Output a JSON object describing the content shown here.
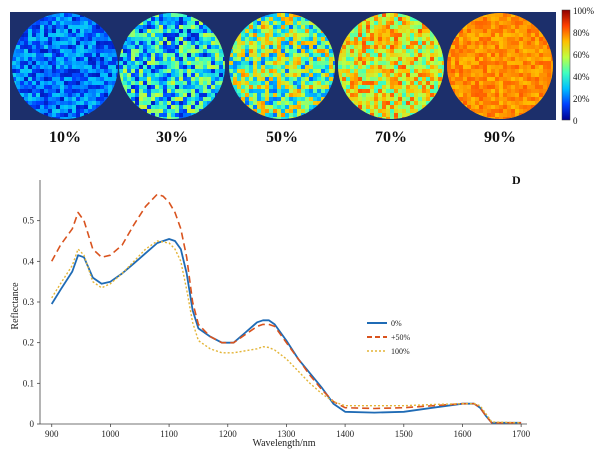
{
  "colorbar": {
    "ticks": [
      "100%",
      "80%",
      "60%",
      "40%",
      "20%",
      "0"
    ],
    "colors": [
      "#00008f",
      "#0040ff",
      "#00bfff",
      "#40ffbf",
      "#bfff40",
      "#ffbf00",
      "#ff4000",
      "#8f0000"
    ]
  },
  "panels": [
    {
      "label": "10%",
      "level": 0.1
    },
    {
      "label": "30%",
      "level": 0.3
    },
    {
      "label": "50%",
      "level": 0.5
    },
    {
      "label": "70%",
      "level": 0.7
    },
    {
      "label": "90%",
      "level": 0.9
    }
  ],
  "panel_letter": "D",
  "chart_data": {
    "type": "line",
    "title": "",
    "xlabel": "Wavelength/nm",
    "ylabel": "Reflectance",
    "xlim": [
      880,
      1710
    ],
    "ylim": [
      0,
      0.6
    ],
    "xticks": [
      900,
      1000,
      1100,
      1200,
      1300,
      1400,
      1500,
      1600,
      1700
    ],
    "yticks": [
      0,
      0.1,
      0.2,
      0.3,
      0.4,
      0.5
    ],
    "legend": "center-right",
    "series": [
      {
        "name": "0%",
        "color": "#1f6bb5",
        "dash": "solid",
        "x": [
          900,
          915,
          935,
          945,
          955,
          970,
          985,
          1000,
          1020,
          1040,
          1060,
          1080,
          1100,
          1110,
          1120,
          1130,
          1140,
          1150,
          1170,
          1190,
          1210,
          1230,
          1250,
          1260,
          1270,
          1280,
          1300,
          1320,
          1340,
          1360,
          1380,
          1400,
          1450,
          1500,
          1550,
          1600,
          1620,
          1630,
          1640,
          1650,
          1700
        ],
        "y": [
          0.295,
          0.33,
          0.375,
          0.415,
          0.41,
          0.36,
          0.345,
          0.35,
          0.37,
          0.395,
          0.42,
          0.445,
          0.455,
          0.45,
          0.43,
          0.37,
          0.28,
          0.235,
          0.215,
          0.2,
          0.2,
          0.225,
          0.25,
          0.255,
          0.255,
          0.245,
          0.205,
          0.16,
          0.125,
          0.09,
          0.05,
          0.03,
          0.028,
          0.03,
          0.04,
          0.05,
          0.05,
          0.04,
          0.02,
          0.003,
          0.003
        ]
      },
      {
        "name": "50%",
        "color": "#d9531e",
        "dash": "7,4",
        "x": [
          900,
          915,
          935,
          945,
          955,
          970,
          985,
          1000,
          1020,
          1040,
          1060,
          1080,
          1090,
          1100,
          1110,
          1120,
          1130,
          1140,
          1150,
          1170,
          1190,
          1210,
          1230,
          1250,
          1260,
          1270,
          1280,
          1300,
          1320,
          1340,
          1360,
          1380,
          1400,
          1450,
          1500,
          1550,
          1600,
          1620,
          1630,
          1640,
          1650,
          1700
        ],
        "y": [
          0.4,
          0.44,
          0.48,
          0.52,
          0.5,
          0.43,
          0.41,
          0.415,
          0.44,
          0.49,
          0.535,
          0.565,
          0.56,
          0.545,
          0.52,
          0.48,
          0.41,
          0.3,
          0.245,
          0.215,
          0.2,
          0.2,
          0.22,
          0.24,
          0.245,
          0.245,
          0.24,
          0.2,
          0.16,
          0.12,
          0.085,
          0.055,
          0.04,
          0.038,
          0.04,
          0.045,
          0.05,
          0.05,
          0.04,
          0.02,
          0.003,
          0.003
        ]
      },
      {
        "name": "100%",
        "color": "#e3b436",
        "dash": "2,2",
        "x": [
          900,
          915,
          935,
          945,
          955,
          970,
          985,
          1000,
          1020,
          1040,
          1060,
          1080,
          1100,
          1110,
          1120,
          1130,
          1140,
          1150,
          1170,
          1190,
          1210,
          1230,
          1250,
          1260,
          1270,
          1280,
          1300,
          1320,
          1340,
          1360,
          1380,
          1400,
          1450,
          1500,
          1550,
          1600,
          1620,
          1630,
          1640,
          1650,
          1700
        ],
        "y": [
          0.31,
          0.345,
          0.39,
          0.43,
          0.415,
          0.35,
          0.335,
          0.345,
          0.37,
          0.4,
          0.43,
          0.45,
          0.445,
          0.43,
          0.4,
          0.33,
          0.25,
          0.205,
          0.185,
          0.175,
          0.175,
          0.18,
          0.185,
          0.19,
          0.188,
          0.182,
          0.16,
          0.13,
          0.1,
          0.075,
          0.055,
          0.045,
          0.045,
          0.045,
          0.048,
          0.05,
          0.05,
          0.045,
          0.025,
          0.005,
          0.003
        ]
      }
    ]
  }
}
